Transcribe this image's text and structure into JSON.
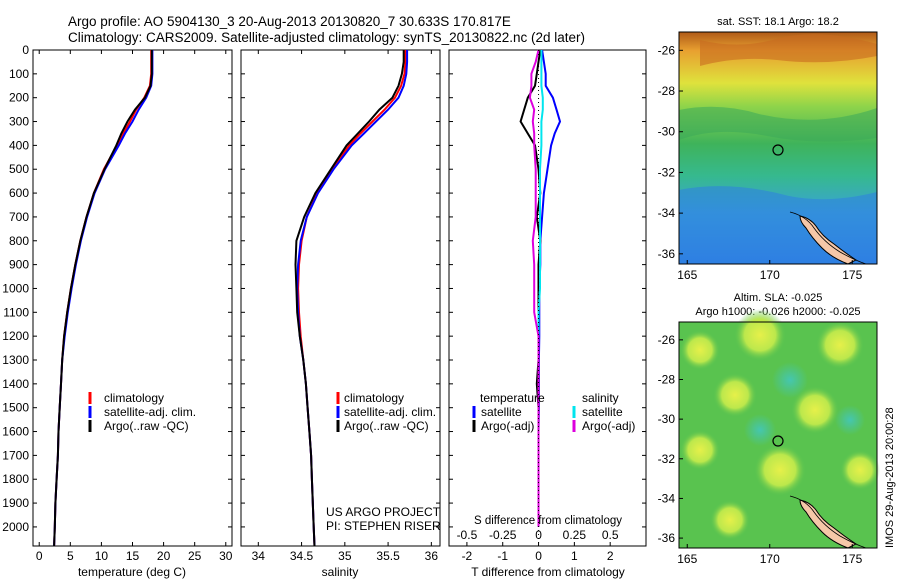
{
  "header": {
    "line1": "Argo profile: AO 5904130_3 20-Aug-2013 20130820_7 30.633S 170.817E",
    "line2": "Climatology: CARS2009. Satellite-adjusted climatology: synTS_20130822.nc (2d later)"
  },
  "credits": {
    "project": "US ARGO PROJECT",
    "pi": "PI: STEPHEN RISER"
  },
  "side_stamp": "IMOS 29-Aug-2013 20:00:28",
  "colors": {
    "climatology": "#ff0000",
    "satellite": "#0000ff",
    "argo": "#000000",
    "salinity_satellite": "#00e5ee",
    "salinity_argo": "#dd00dd"
  },
  "chart_data": [
    {
      "type": "line",
      "xlabel": "temperature (deg C)",
      "ylabel": "",
      "xlim": [
        -1,
        31
      ],
      "ylim": [
        2080,
        0
      ],
      "xticks": [
        0,
        5,
        10,
        15,
        20,
        25,
        30
      ],
      "yticks": [
        0,
        100,
        200,
        300,
        400,
        500,
        600,
        700,
        800,
        900,
        1000,
        1100,
        1200,
        1300,
        1400,
        1500,
        1600,
        1700,
        1800,
        1900,
        2000
      ],
      "legend": [
        "climatology",
        "satellite-adj. clim.",
        "Argo(..raw -QC)"
      ],
      "legend_position": "lower-center",
      "depth": [
        0,
        50,
        100,
        150,
        200,
        250,
        300,
        350,
        400,
        500,
        600,
        700,
        800,
        900,
        1000,
        1100,
        1200,
        1300,
        1400,
        1500,
        1600,
        1700,
        1800,
        1900,
        2000,
        2080
      ],
      "series": [
        {
          "name": "climatology",
          "values": [
            18.0,
            18.0,
            18.0,
            17.8,
            16.9,
            15.6,
            14.6,
            13.5,
            12.5,
            10.4,
            8.8,
            7.6,
            6.6,
            5.8,
            5.1,
            4.5,
            4.0,
            3.7,
            3.5,
            3.3,
            3.1,
            3.0,
            2.8,
            2.6,
            2.5,
            2.4
          ]
        },
        {
          "name": "satellite-adj. clim.",
          "values": [
            18.2,
            18.2,
            18.2,
            18.0,
            17.2,
            16.0,
            15.0,
            13.8,
            12.8,
            10.6,
            8.9,
            7.7,
            6.7,
            5.9,
            5.2,
            4.6,
            4.1,
            3.7,
            3.5,
            3.3,
            3.1,
            3.0,
            2.8,
            2.6,
            2.5,
            2.4
          ]
        },
        {
          "name": "Argo(..raw -QC)",
          "values": [
            18.1,
            18.1,
            18.1,
            17.9,
            17.0,
            15.4,
            14.2,
            13.2,
            12.4,
            10.5,
            8.8,
            7.6,
            6.6,
            5.8,
            5.1,
            4.5,
            4.0,
            3.7,
            3.5,
            3.3,
            3.1,
            3.0,
            2.8,
            2.6,
            2.5,
            2.4
          ]
        }
      ]
    },
    {
      "type": "line",
      "xlabel": "salinity",
      "ylabel": "",
      "xlim": [
        33.8,
        36.1
      ],
      "ylim": [
        2080,
        0
      ],
      "xticks": [
        34,
        34.5,
        35,
        35.5,
        36
      ],
      "legend": [
        "climatology",
        "satellite-adj. clim.",
        "Argo(..raw -QC)"
      ],
      "legend_position": "lower-center",
      "depth": [
        0,
        50,
        100,
        150,
        200,
        250,
        300,
        350,
        400,
        500,
        600,
        700,
        800,
        900,
        1000,
        1100,
        1200,
        1300,
        1400,
        1500,
        1600,
        1700,
        1800,
        1900,
        2000,
        2080
      ],
      "series": [
        {
          "name": "climatology",
          "values": [
            35.7,
            35.7,
            35.69,
            35.65,
            35.58,
            35.46,
            35.32,
            35.18,
            35.05,
            34.85,
            34.68,
            34.56,
            34.5,
            34.47,
            34.46,
            34.47,
            34.49,
            34.52,
            34.55,
            34.57,
            34.59,
            34.61,
            34.62,
            34.63,
            34.64,
            34.65
          ]
        },
        {
          "name": "satellite-adj. clim.",
          "values": [
            35.72,
            35.72,
            35.71,
            35.68,
            35.62,
            35.5,
            35.36,
            35.22,
            35.08,
            34.87,
            34.69,
            34.56,
            34.49,
            34.46,
            34.45,
            34.46,
            34.48,
            34.52,
            34.55,
            34.57,
            34.59,
            34.61,
            34.62,
            34.63,
            34.64,
            34.65
          ]
        },
        {
          "name": "Argo(..raw -QC)",
          "values": [
            35.68,
            35.68,
            35.66,
            35.62,
            35.55,
            35.4,
            35.28,
            35.15,
            35.02,
            34.84,
            34.66,
            34.53,
            34.44,
            34.43,
            34.44,
            34.45,
            34.48,
            34.52,
            34.55,
            34.57,
            34.59,
            34.61,
            34.62,
            34.63,
            34.64,
            34.65
          ]
        }
      ]
    },
    {
      "type": "line",
      "xlabel": "T difference from climatology",
      "xlabel_top": "S difference from climatology",
      "xlim": [
        -2.5,
        3.0
      ],
      "ylim": [
        2080,
        0
      ],
      "xticks": [
        -2,
        -1,
        0,
        1,
        2
      ],
      "xticks_labels": [
        "-2",
        "-1",
        "0",
        "1",
        "2"
      ],
      "s_ticks": [
        -0.5,
        -0.25,
        0,
        0.25,
        0.5
      ],
      "s_ticks_labels": [
        "-0.5",
        "-0.25",
        "0",
        "0.25",
        "0.5"
      ],
      "legend_titles": [
        "temperature",
        "salinity"
      ],
      "legend": [
        "satellite",
        "Argo(-adj)",
        "satellite",
        "Argo(-adj)"
      ],
      "depth": [
        0,
        50,
        100,
        150,
        200,
        250,
        300,
        350,
        400,
        500,
        600,
        700,
        800,
        900,
        1000,
        1100,
        1200,
        1300,
        1400,
        1500,
        1600,
        1700,
        1800,
        1900,
        2000
      ],
      "series": [
        {
          "name": "temperature satellite",
          "values": [
            0.1,
            0.15,
            0.2,
            0.2,
            0.4,
            0.5,
            0.6,
            0.45,
            0.35,
            0.25,
            0.15,
            0.1,
            0.05,
            0.05,
            0.02,
            0.02,
            0.02,
            0.01,
            0.01,
            0.01,
            0.0,
            0.0,
            0.0,
            0.0,
            0.0
          ]
        },
        {
          "name": "temperature Argo(-adj)",
          "values": [
            0.05,
            0.0,
            -0.05,
            -0.1,
            -0.3,
            -0.4,
            -0.5,
            -0.3,
            -0.1,
            0.0,
            0.05,
            -0.05,
            0.05,
            0.0,
            0.0,
            0.0,
            0.0,
            0.0,
            -0.05,
            0.0,
            0.0,
            0.0,
            0.0,
            0.0,
            0.0
          ]
        },
        {
          "name": "salinity satellite",
          "values": [
            0.02,
            0.02,
            0.02,
            0.02,
            0.03,
            0.03,
            0.02,
            0.02,
            0.02,
            0.01,
            0.01,
            0.01,
            0.01,
            0.01,
            0.01,
            0.0,
            0.0,
            0.0,
            0.0,
            0.0,
            0.0,
            0.0,
            0.0,
            0.0,
            0.0
          ]
        },
        {
          "name": "salinity Argo(-adj)",
          "values": [
            0.0,
            -0.02,
            -0.05,
            -0.05,
            -0.06,
            -0.03,
            -0.04,
            -0.03,
            -0.03,
            -0.02,
            -0.02,
            -0.02,
            -0.04,
            -0.03,
            -0.03,
            -0.03,
            0.0,
            0.0,
            0.0,
            0.0,
            0.0,
            0.0,
            0.0,
            0.0,
            0.0
          ]
        }
      ]
    },
    {
      "type": "heatmap",
      "title": "sat. SST: 18.1  Argo: 18.2",
      "xticks": [
        165,
        170,
        175
      ],
      "yticks": [
        -26,
        -28,
        -30,
        -32,
        -34,
        -36
      ],
      "xlim": [
        164.5,
        176.5
      ],
      "ylim": [
        -36.5,
        -25.1
      ],
      "argo_marker": {
        "lon": 170.817,
        "lat": -30.633
      }
    },
    {
      "type": "heatmap",
      "title": "Altim. SLA: -0.025",
      "subtitle": "Argo h1000: -0.026  h2000: -0.025",
      "xticks": [
        165,
        170,
        175
      ],
      "yticks": [
        -26,
        -28,
        -30,
        -32,
        -34,
        -36
      ],
      "xlim": [
        164.5,
        176.5
      ],
      "ylim": [
        -36.5,
        -25.1
      ],
      "argo_marker": {
        "lon": 170.817,
        "lat": -30.633
      }
    }
  ]
}
